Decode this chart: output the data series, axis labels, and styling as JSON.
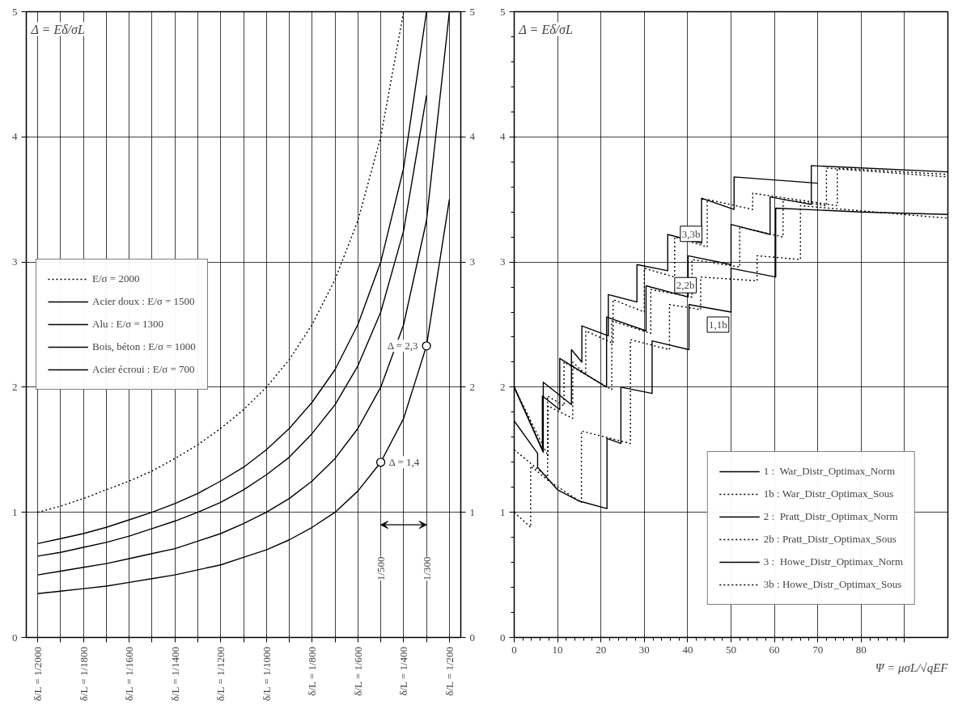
{
  "chart_data": [
    {
      "type": "line",
      "ylabel": "Δ = Eδ/σL",
      "categories": [
        "δ/L = 1/2000",
        null,
        "δ/L = 1/1800",
        null,
        "δ/L = 1/1600",
        null,
        "δ/L = 1/1400",
        null,
        "δ/L = 1/1200",
        null,
        "δ/L = 1/1000",
        null,
        "δ/L = 1/800",
        null,
        "δ/L = 1/600",
        null,
        "δ/L = 1/400",
        null,
        "δ/L = 1/200"
      ],
      "ylim": [
        0,
        5
      ],
      "yticks": [
        0,
        1,
        2,
        3,
        4,
        5
      ],
      "y2lim": [
        0,
        5
      ],
      "y2ticks": [
        0,
        1,
        2,
        3,
        4,
        5
      ],
      "grid": true,
      "legend": "left",
      "series": [
        {
          "name": "E/σ = 2000",
          "color": "#000000",
          "line_style": "dotted",
          "values": [
            1.0,
            1.05,
            1.11,
            1.18,
            1.25,
            1.33,
            1.43,
            1.54,
            1.67,
            1.82,
            2.0,
            2.22,
            2.5,
            2.86,
            3.33,
            4.0,
            5.0,
            null,
            null
          ]
        },
        {
          "name": "Acier doux : E/σ = 1500",
          "color": "#000000",
          "line_style": "solid",
          "values": [
            0.75,
            0.79,
            0.83,
            0.88,
            0.94,
            1.0,
            1.07,
            1.15,
            1.25,
            1.36,
            1.5,
            1.67,
            1.88,
            2.14,
            2.5,
            3.0,
            3.75,
            5.0,
            null
          ]
        },
        {
          "name": "Alu : E/σ = 1300",
          "color": "#000000",
          "line_style": "solid",
          "values": [
            0.65,
            0.68,
            0.72,
            0.76,
            0.81,
            0.87,
            0.93,
            1.0,
            1.08,
            1.18,
            1.3,
            1.44,
            1.63,
            1.86,
            2.17,
            2.6,
            3.25,
            4.33,
            null
          ]
        },
        {
          "name": "Bois, béton : E/σ = 1000",
          "color": "#000000",
          "line_style": "solid",
          "values": [
            0.5,
            0.53,
            0.56,
            0.59,
            0.63,
            0.67,
            0.71,
            0.77,
            0.83,
            0.91,
            1.0,
            1.11,
            1.25,
            1.43,
            1.67,
            2.0,
            2.5,
            3.33,
            5.0
          ]
        },
        {
          "name": "Acier écroui : E/σ = 700",
          "color": "#000000",
          "line_style": "solid",
          "values": [
            0.35,
            0.37,
            0.39,
            0.41,
            0.44,
            0.47,
            0.5,
            0.54,
            0.58,
            0.64,
            0.7,
            0.78,
            0.88,
            1.0,
            1.17,
            1.4,
            1.75,
            2.33,
            3.5
          ]
        },
        {
          "type": "scatter",
          "marker": "circle",
          "color": "#000000",
          "values": [
            null,
            null,
            null,
            null,
            null,
            null,
            null,
            null,
            null,
            null,
            null,
            null,
            null,
            null,
            null,
            1.4,
            null,
            2.33,
            null
          ],
          "value_labels": [
            null,
            null,
            null,
            null,
            null,
            null,
            null,
            null,
            null,
            null,
            null,
            null,
            null,
            null,
            null,
            "Δ = 1,4",
            null,
            "Δ = 2,3",
            null
          ]
        }
      ],
      "annotations": [
        "1/500",
        "1/300"
      ]
    },
    {
      "type": "line",
      "xlabel": "Ψ = μσL/√qEF",
      "ylabel": "Δ = Eδ/σL",
      "xlim": [
        0,
        100
      ],
      "xticks": [
        0,
        10,
        20,
        30,
        40,
        50,
        60,
        70,
        80,
        {
          "value": 90,
          "label": null
        }
      ],
      "ylim": [
        0,
        5
      ],
      "yticks": [
        0,
        1,
        2,
        3,
        4,
        5
      ],
      "grid": true,
      "legend": "bottom right",
      "series": [
        {
          "name": "1 :  War_Distr_Optimax_Norm",
          "color": "#000000",
          "line_style": "solid",
          "x": [
            0,
            5.4,
            5.4,
            10,
            15,
            21.4,
            21.4,
            24.6,
            24.6,
            31.8,
            31.8,
            40.3,
            40.3,
            50.0,
            50.0,
            60.3,
            60.3,
            80,
            100
          ],
          "values": [
            1.73,
            1.47,
            1.36,
            1.18,
            1.09,
            1.03,
            1.59,
            1.55,
            2.0,
            1.95,
            2.37,
            2.3,
            2.66,
            2.6,
            2.95,
            2.88,
            3.43,
            3.4,
            3.38
          ]
        },
        {
          "name": "1b : War_Distr_Optimax_Sous",
          "color": "#000000",
          "line_style": "dotted",
          "x": [
            0,
            3.8,
            3.8,
            8,
            15.5,
            15.5,
            26.8,
            26.8,
            35.8,
            35.8,
            43,
            43,
            56,
            56,
            66,
            66,
            100
          ],
          "values": [
            1.0,
            0.88,
            1.37,
            1.25,
            1.08,
            1.65,
            1.55,
            2.38,
            2.3,
            2.66,
            2.62,
            2.88,
            2.85,
            3.05,
            3.02,
            3.45,
            3.35
          ]
        },
        {
          "name": "2 :  Pratt_Distr_Optimax_Norm",
          "color": "#000000",
          "line_style": "solid",
          "x": [
            0,
            6.5,
            6.5,
            10.5,
            10.5,
            21.3,
            21.3,
            30.4,
            30.4,
            40.1,
            40.1,
            50,
            50,
            59,
            59,
            68.5,
            68.5,
            100
          ],
          "values": [
            2.0,
            1.5,
            1.93,
            1.82,
            2.23,
            2.0,
            2.56,
            2.45,
            2.81,
            2.72,
            3.05,
            2.98,
            3.3,
            3.22,
            3.52,
            3.46,
            3.77,
            3.72
          ]
        },
        {
          "name": "2b : Pratt_Distr_Optimax_Sous",
          "color": "#000000",
          "line_style": "dotted",
          "x": [
            0,
            7.7,
            7.7,
            11.5,
            11.5,
            22.5,
            22.5,
            31.5,
            31.5,
            41,
            41,
            52,
            52,
            62,
            62,
            72,
            72,
            100
          ],
          "values": [
            1.5,
            1.28,
            1.93,
            1.85,
            2.2,
            1.98,
            2.53,
            2.43,
            2.78,
            2.72,
            3.02,
            2.96,
            3.28,
            3.2,
            3.5,
            3.45,
            3.75,
            3.68
          ]
        },
        {
          "name": "3 :  Howe_Distr_Optimax_Norm",
          "color": "#000000",
          "line_style": "solid",
          "x": [
            0,
            6.7,
            6.7,
            13.2,
            13.2,
            15.6,
            15.6,
            21.7,
            21.7,
            28.3,
            28.3,
            35.4,
            35.4,
            43.2,
            43.2,
            50.7,
            50.7,
            70
          ],
          "values": [
            2.0,
            1.48,
            2.04,
            1.86,
            2.3,
            2.2,
            2.49,
            2.41,
            2.74,
            2.68,
            2.98,
            2.93,
            3.22,
            3.15,
            3.51,
            3.42,
            3.68,
            3.63
          ]
        },
        {
          "name": "3b : Howe_Distr_Optimax_Sous",
          "color": "#000000",
          "line_style": "dotted",
          "x": [
            0,
            7.8,
            7.8,
            13.5,
            13.5,
            16.5,
            16.5,
            22.8,
            22.8,
            30,
            30,
            37,
            37,
            44.5,
            44.5,
            55,
            55,
            74.5,
            74.5,
            100
          ],
          "values": [
            2.0,
            1.45,
            1.85,
            1.75,
            2.2,
            2.1,
            2.45,
            2.35,
            2.7,
            2.6,
            2.95,
            2.88,
            3.2,
            3.12,
            3.5,
            3.42,
            3.55,
            3.45,
            3.75,
            3.7
          ]
        }
      ],
      "annotations": [
        "3,3b",
        "2,2b",
        "1,1b"
      ]
    }
  ]
}
